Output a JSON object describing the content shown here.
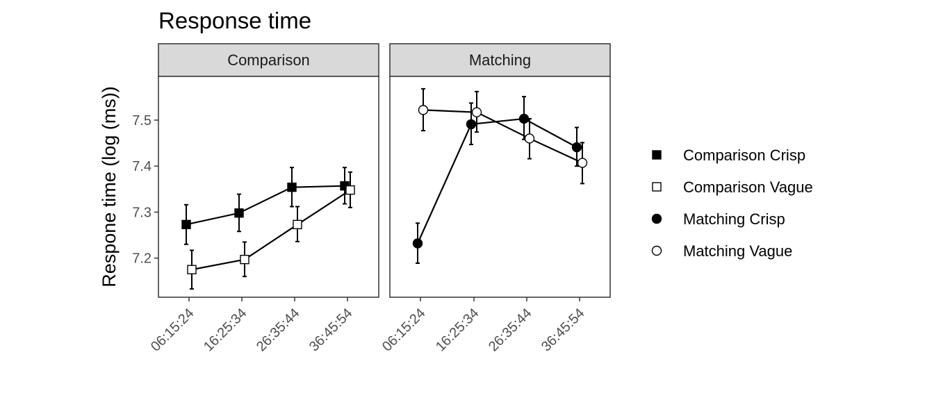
{
  "chart_data": {
    "type": "line",
    "title": "Response time",
    "ylabel": "Respone time (log (ms))",
    "xlabel": "",
    "ylim": [
      7.115,
      7.595
    ],
    "yticks": [
      7.2,
      7.3,
      7.4,
      7.5
    ],
    "categories": [
      "06:15:24",
      "16:25:34",
      "26:35:44",
      "36:45:54"
    ],
    "grid": false,
    "legend_position": "right",
    "panels": [
      {
        "name": "Comparison",
        "series": [
          {
            "name": "Comparison Crisp",
            "marker": "square",
            "fill": "#000000",
            "values": [
              7.273,
              7.298,
              7.354,
              7.357
            ],
            "lower": [
              7.23,
              7.258,
              7.312,
              7.318
            ],
            "upper": [
              7.316,
              7.339,
              7.397,
              7.397
            ]
          },
          {
            "name": "Comparison Vague",
            "marker": "square",
            "fill": "#ffffff",
            "values": [
              7.175,
              7.197,
              7.273,
              7.348
            ],
            "lower": [
              7.133,
              7.16,
              7.236,
              7.31
            ],
            "upper": [
              7.217,
              7.235,
              7.312,
              7.387
            ]
          }
        ]
      },
      {
        "name": "Matching",
        "series": [
          {
            "name": "Matching Crisp",
            "marker": "circle",
            "fill": "#000000",
            "values": [
              7.232,
              7.491,
              7.503,
              7.441
            ],
            "lower": [
              7.189,
              7.447,
              7.458,
              7.4
            ],
            "upper": [
              7.276,
              7.537,
              7.551,
              7.484
            ]
          },
          {
            "name": "Matching Vague",
            "marker": "circle",
            "fill": "#ffffff",
            "values": [
              7.522,
              7.517,
              7.46,
              7.407
            ],
            "lower": [
              7.477,
              7.474,
              7.416,
              7.362
            ],
            "upper": [
              7.568,
              7.562,
              7.503,
              7.451
            ]
          }
        ]
      }
    ],
    "legend": [
      {
        "label": "Comparison Crisp",
        "marker": "square",
        "fill": "#000000"
      },
      {
        "label": "Comparison Vague",
        "marker": "square",
        "fill": "#ffffff"
      },
      {
        "label": "Matching Crisp",
        "marker": "circle",
        "fill": "#000000"
      },
      {
        "label": "Matching Vague",
        "marker": "circle",
        "fill": "#ffffff"
      }
    ],
    "colors": {
      "line": "#000000",
      "strip_fill": "#d9d9d9",
      "panel_border": "#333333",
      "tick_label": "#4d4d4d"
    }
  }
}
